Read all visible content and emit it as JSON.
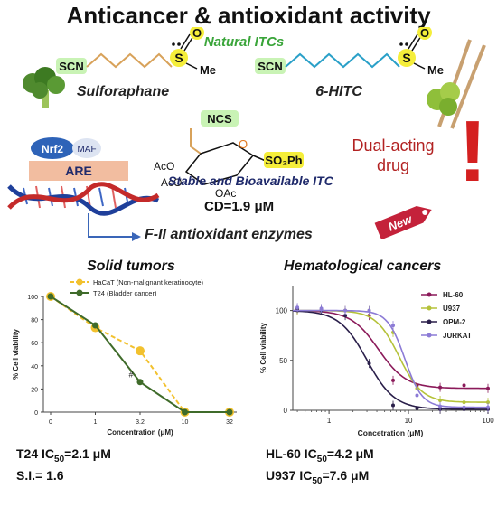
{
  "title": "Anticancer & antioxidant activity",
  "natural_itcs_label": "Natural ITCs",
  "molecules": {
    "scn_a": "SCN",
    "scn_b": "SCN",
    "ncs": "NCS",
    "me_a": "Me",
    "me_b": "Me",
    "s_a": "S",
    "s_b": "S",
    "o_a": "O",
    "o_b": "O",
    "ring_o": "O",
    "aco_1": "AcO",
    "aco_2": "AcO",
    "oac": "OAc",
    "so2ph": "SO₂Ph",
    "sulforaphane": "Sulforaphane",
    "hitc": "6-HITC"
  },
  "mechanism": {
    "nrf2": "Nrf2",
    "maf": "MAF",
    "are": "ARE",
    "stable_label": "Stable and Bioavailable ITC",
    "cd_value": "CD=1.9 μM",
    "enzymes_label": "F-II antioxidant enzymes",
    "dual_line1": "Dual-acting",
    "dual_line2": "drug",
    "new_tag": "New",
    "exclamation": "!"
  },
  "solid": {
    "section_title": "Solid tumors",
    "ic50_label": "T24 IC",
    "ic50_sub": "50",
    "ic50_value": "=2.1 μM",
    "si_label": "S.I.= 1.6",
    "annotation": "#"
  },
  "heme": {
    "section_title": "Hematological cancers",
    "ic50_a_label": "HL-60 IC",
    "ic50_a_sub": "50",
    "ic50_a_value": "=4.2 μM",
    "ic50_b_label": "U937 IC",
    "ic50_b_sub": "50",
    "ic50_b_value": "=7.6 μM"
  },
  "colors": {
    "green_label": "#3aa53a",
    "navy": "#1f2a6b",
    "red": "#b22222",
    "highlight_green": "#c9f3b5",
    "highlight_yellow": "#f5ee3a"
  },
  "chart_data": [
    {
      "type": "line",
      "xlabel": "Concentration (μM)",
      "ylabel": "% Cell viability",
      "x": [
        "0",
        "1",
        "3.2",
        "10",
        "32"
      ],
      "yticks": [
        0,
        20,
        40,
        60,
        80,
        100
      ],
      "ylim": [
        0,
        100
      ],
      "legend_position": "top",
      "series": [
        {
          "name": "HaCaT (Non-malignant keratinocyte)",
          "color": "#f2c12e",
          "dashed": true,
          "values": [
            100,
            73,
            53,
            0,
            0
          ]
        },
        {
          "name": "T24 (Bladder cancer)",
          "color": "#3f6b2a",
          "dashed": false,
          "values": [
            100,
            75,
            26,
            0,
            0
          ]
        }
      ]
    },
    {
      "type": "line",
      "xscale": "log",
      "xlabel": "Concetration (μM)",
      "ylabel": "% Cell viability",
      "xticks": [
        1,
        10,
        100
      ],
      "yticks": [
        0,
        50,
        100
      ],
      "xlim": [
        0.35,
        100
      ],
      "ylim": [
        0,
        125
      ],
      "legend_position": "top-right",
      "series": [
        {
          "name": "HL-60",
          "color": "#8b1a5a",
          "ic50": 4.2,
          "hill": 2.5,
          "bottom": 22,
          "points": [
            [
              0.4,
              100
            ],
            [
              0.8,
              100
            ],
            [
              1.6,
              100
            ],
            [
              3.2,
              95
            ],
            [
              6.4,
              30
            ],
            [
              12.8,
              25
            ],
            [
              25,
              23
            ],
            [
              50,
              25
            ],
            [
              100,
              22
            ]
          ]
        },
        {
          "name": "U937",
          "color": "#b5c23a",
          "ic50": 7.6,
          "hill": 3,
          "bottom": 8,
          "points": [
            [
              0.4,
              100
            ],
            [
              0.8,
              100
            ],
            [
              1.6,
              100
            ],
            [
              3.2,
              100
            ],
            [
              6.4,
              78
            ],
            [
              12.8,
              22
            ],
            [
              25,
              10
            ],
            [
              50,
              8
            ],
            [
              100,
              8
            ]
          ]
        },
        {
          "name": "OPM-2",
          "color": "#2a1f4a",
          "ic50": 3,
          "hill": 2.5,
          "bottom": 1,
          "points": [
            [
              0.4,
              102
            ],
            [
              0.8,
              100
            ],
            [
              1.6,
              95
            ],
            [
              3.2,
              47
            ],
            [
              6.4,
              5
            ],
            [
              12.8,
              2
            ],
            [
              25,
              1
            ],
            [
              50,
              1
            ],
            [
              100,
              1
            ]
          ]
        },
        {
          "name": "JURKAT",
          "color": "#8c7bd6",
          "ic50": 9,
          "hill": 4,
          "bottom": 3,
          "points": [
            [
              0.4,
              103
            ],
            [
              0.8,
              102
            ],
            [
              1.6,
              100
            ],
            [
              3.2,
              100
            ],
            [
              6.4,
              85
            ],
            [
              12.8,
              15
            ],
            [
              25,
              4
            ],
            [
              50,
              3
            ],
            [
              100,
              3
            ]
          ]
        }
      ]
    }
  ]
}
